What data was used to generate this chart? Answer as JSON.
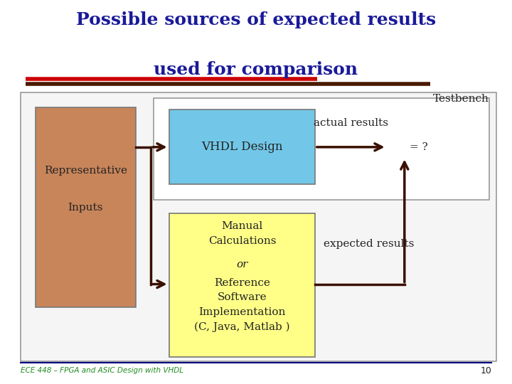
{
  "title_line1": "Possible sources of expected results",
  "title_line2": "used for comparison",
  "title_color": "#1a1a99",
  "title_fontsize": 18,
  "bg_color": "#ffffff",
  "footer_text": "ECE 448 – FPGA and ASIC Design with VHDL",
  "footer_page": "10",
  "footer_color": "#228B22",
  "red_line_color": "#cc0000",
  "dark_line_color": "#4a1a00",
  "arrow_color": "#3a1000",
  "rep_box_color": "#c8855a",
  "vhdl_box_color": "#72c7e8",
  "calc_box_color": "#ffff88",
  "testbench_label": "Testbench",
  "rep_label_1": "Representative",
  "rep_label_2": "Inputs",
  "vhdl_label": "VHDL Design",
  "actual_label": "actual results",
  "equals_label": "= ?",
  "expected_label": "expected results",
  "footer_line_color": "#000080",
  "outer_box_edge": "#999999",
  "inner_box_edge": "#999999"
}
